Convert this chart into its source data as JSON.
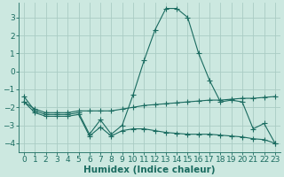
{
  "xlabel": "Humidex (Indice chaleur)",
  "bg_color": "#cce8e0",
  "grid_color": "#aaccc4",
  "line_color": "#1a6b60",
  "xlim": [
    -0.5,
    23.5
  ],
  "ylim": [
    -4.5,
    3.8
  ],
  "yticks": [
    -4,
    -3,
    -2,
    -1,
    0,
    1,
    2,
    3
  ],
  "xticks": [
    0,
    1,
    2,
    3,
    4,
    5,
    6,
    7,
    8,
    9,
    10,
    11,
    12,
    13,
    14,
    15,
    16,
    17,
    18,
    19,
    20,
    21,
    22,
    23
  ],
  "line1_x": [
    0,
    1,
    2,
    3,
    4,
    5,
    6,
    7,
    8,
    9,
    10,
    11,
    12,
    13,
    14,
    15,
    16,
    17,
    18,
    19,
    20,
    21,
    22,
    23
  ],
  "line1_y": [
    -1.4,
    -2.2,
    -2.4,
    -2.4,
    -2.4,
    -2.3,
    -3.5,
    -2.7,
    -3.5,
    -3.0,
    -1.3,
    0.6,
    2.3,
    3.5,
    3.5,
    3.0,
    1.0,
    -0.5,
    -1.7,
    -1.6,
    -1.7,
    -3.2,
    -2.9,
    -4.0
  ],
  "line2_x": [
    0,
    1,
    2,
    3,
    4,
    5,
    6,
    7,
    8,
    9,
    10,
    11,
    12,
    13,
    14,
    15,
    16,
    17,
    18,
    19,
    20,
    21,
    22,
    23
  ],
  "line2_y": [
    -1.7,
    -2.1,
    -2.3,
    -2.3,
    -2.3,
    -2.2,
    -2.2,
    -2.2,
    -2.2,
    -2.1,
    -2.0,
    -1.9,
    -1.85,
    -1.8,
    -1.75,
    -1.7,
    -1.65,
    -1.6,
    -1.6,
    -1.55,
    -1.5,
    -1.5,
    -1.45,
    -1.4
  ],
  "line3_x": [
    0,
    1,
    2,
    3,
    4,
    5,
    6,
    7,
    8,
    9,
    10,
    11,
    12,
    13,
    14,
    15,
    16,
    17,
    18,
    19,
    20,
    21,
    22,
    23
  ],
  "line3_y": [
    -1.7,
    -2.3,
    -2.5,
    -2.5,
    -2.5,
    -2.4,
    -3.6,
    -3.1,
    -3.6,
    -3.3,
    -3.2,
    -3.2,
    -3.3,
    -3.4,
    -3.45,
    -3.5,
    -3.5,
    -3.5,
    -3.55,
    -3.6,
    -3.65,
    -3.75,
    -3.8,
    -4.0
  ],
  "tick_fontsize": 6.5,
  "label_fontsize": 7.5
}
